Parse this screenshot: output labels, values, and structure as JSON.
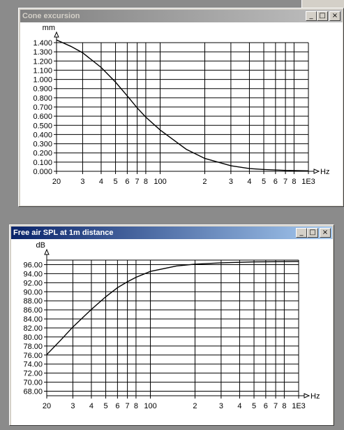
{
  "windows": [
    {
      "id": "cone",
      "title": "Cone excursion",
      "active": false,
      "buttons": {
        "minimize": "_",
        "maximize": "□",
        "close": "×"
      },
      "chart_data": {
        "type": "line",
        "title": "",
        "ylabel": "mm",
        "xlabel": "Hz",
        "xscale": "log",
        "xlim": [
          20,
          1000
        ],
        "ylim": [
          0.0,
          1.4
        ],
        "ytick_step": 0.1,
        "ytick_labels": [
          "0.000",
          "0.100",
          "0.200",
          "0.300",
          "0.400",
          "0.500",
          "0.600",
          "0.700",
          "0.800",
          "0.900",
          "1.000",
          "1.100",
          "1.200",
          "1.300",
          "1.400"
        ],
        "xticks": [
          20,
          30,
          40,
          50,
          60,
          70,
          80,
          100,
          200,
          300,
          400,
          500,
          600,
          700,
          800,
          1000
        ],
        "xtick_labels": [
          "20",
          "3",
          "4",
          "5",
          "6",
          "7",
          "8",
          "100",
          "2",
          "3",
          "4",
          "5",
          "6",
          "7",
          "8",
          "1E3"
        ],
        "grid": true,
        "series": [
          {
            "x": [
              20,
              25,
              30,
              40,
              50,
              60,
              70,
              80,
              100,
              150,
              200,
              300,
              400,
              500,
              700,
              1000
            ],
            "values": [
              1.43,
              1.36,
              1.29,
              1.13,
              0.97,
              0.82,
              0.69,
              0.59,
              0.45,
              0.24,
              0.14,
              0.06,
              0.03,
              0.02,
              0.01,
              0.005
            ]
          }
        ]
      }
    },
    {
      "id": "spl",
      "title": "Free air SPL at 1m distance",
      "active": true,
      "buttons": {
        "minimize": "_",
        "maximize": "□",
        "close": "×"
      },
      "chart_data": {
        "type": "line",
        "title": "",
        "ylabel": "dB",
        "xlabel": "Hz",
        "xscale": "log",
        "xlim": [
          20,
          1000
        ],
        "ylim": [
          67.0,
          97.0
        ],
        "ytick_labels": [
          "68.00",
          "70.00",
          "72.00",
          "74.00",
          "76.00",
          "78.00",
          "80.00",
          "82.00",
          "84.00",
          "86.00",
          "88.00",
          "90.00",
          "92.00",
          "94.00",
          "96.00"
        ],
        "ytick_values": [
          68,
          70,
          72,
          74,
          76,
          78,
          80,
          82,
          84,
          86,
          88,
          90,
          92,
          94,
          96
        ],
        "xticks": [
          20,
          30,
          40,
          50,
          60,
          70,
          80,
          100,
          200,
          300,
          400,
          500,
          600,
          700,
          800,
          1000
        ],
        "xtick_labels": [
          "20",
          "3",
          "4",
          "5",
          "6",
          "7",
          "8",
          "100",
          "2",
          "3",
          "4",
          "5",
          "6",
          "7",
          "8",
          "1E3"
        ],
        "grid": true,
        "series": [
          {
            "x": [
              20,
              25,
              30,
              40,
              50,
              60,
              70,
              80,
              100,
              150,
              200,
              300,
              400,
              500,
              700,
              1000
            ],
            "values": [
              76.1,
              79.4,
              82.2,
              86.1,
              88.9,
              90.9,
              92.2,
              93.2,
              94.5,
              95.7,
              96.1,
              96.4,
              96.5,
              96.6,
              96.65,
              96.7
            ]
          }
        ]
      }
    }
  ]
}
